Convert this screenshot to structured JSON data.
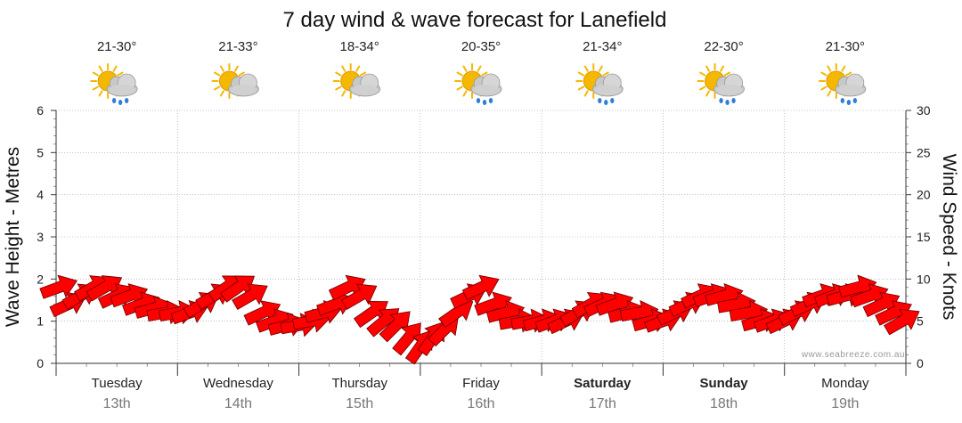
{
  "title": "7 day wind & wave forecast for Lanefield",
  "credit": "www.seabreeze.com.au",
  "colors": {
    "arrow": "#ff0000",
    "arrow_outline": "#6a0000",
    "grid": "#999999",
    "sun": "#f5b800",
    "cloud": "#c8c8c8",
    "rain": "#2f7fd8"
  },
  "days": [
    {
      "name": "Tuesday",
      "date": "13th",
      "temp": "21-30°",
      "bold": false,
      "icon": "sun-cloud-rain-icon"
    },
    {
      "name": "Wednesday",
      "date": "14th",
      "temp": "21-33°",
      "bold": false,
      "icon": "sun-cloud-icon"
    },
    {
      "name": "Thursday",
      "date": "15th",
      "temp": "18-34°",
      "bold": false,
      "icon": "sun-cloud-icon"
    },
    {
      "name": "Friday",
      "date": "16th",
      "temp": "20-35°",
      "bold": false,
      "icon": "sun-cloud-rain-icon"
    },
    {
      "name": "Saturday",
      "date": "17th",
      "temp": "21-34°",
      "bold": true,
      "icon": "sun-cloud-rain-icon"
    },
    {
      "name": "Sunday",
      "date": "18th",
      "temp": "22-30°",
      "bold": true,
      "icon": "sun-cloud-rain-icon"
    },
    {
      "name": "Monday",
      "date": "19th",
      "temp": "21-30°",
      "bold": false,
      "icon": "sun-cloud-rain-icon"
    }
  ],
  "chart_data": {
    "type": "line",
    "title": "7 day wind & wave forecast for Lanefield",
    "x": {
      "unit": "day",
      "range": [
        0,
        7
      ],
      "tick_labels": [
        "Tuesday 13th",
        "Wednesday 14th",
        "Thursday 15th",
        "Friday 16th",
        "Saturday 17th",
        "Sunday 18th",
        "Monday 19th"
      ]
    },
    "y_left": {
      "label": "Wave Height - Metres",
      "range": [
        0,
        6
      ],
      "ticks": [
        0,
        1,
        2,
        3,
        4,
        5,
        6
      ]
    },
    "y_right": {
      "label": "Wind Speed - Knots",
      "range": [
        0,
        30
      ],
      "ticks": [
        0,
        5,
        10,
        15,
        20,
        25,
        30
      ]
    },
    "grid": true,
    "series": [
      {
        "name": "Wind Speed - Knots",
        "axis": "right",
        "marker": "direction-arrow",
        "x": [
          0.02,
          0.1,
          0.2,
          0.3,
          0.4,
          0.5,
          0.6,
          0.7,
          0.8,
          0.9,
          1.0,
          1.1,
          1.2,
          1.3,
          1.4,
          1.5,
          1.6,
          1.7,
          1.8,
          1.9,
          2.0,
          2.1,
          2.2,
          2.3,
          2.4,
          2.5,
          2.6,
          2.7,
          2.8,
          2.9,
          3.0,
          3.1,
          3.2,
          3.3,
          3.4,
          3.5,
          3.6,
          3.7,
          3.8,
          3.9,
          4.0,
          4.1,
          4.2,
          4.3,
          4.4,
          4.5,
          4.6,
          4.7,
          4.8,
          4.9,
          5.0,
          5.1,
          5.2,
          5.3,
          5.4,
          5.5,
          5.6,
          5.7,
          5.8,
          5.9,
          6.0,
          6.1,
          6.2,
          6.3,
          6.4,
          6.5,
          6.6,
          6.7,
          6.8,
          6.9,
          6.97
        ],
        "values": [
          9,
          7,
          8,
          9,
          9,
          8,
          8,
          7,
          6.5,
          6,
          6,
          6,
          7,
          8,
          9,
          9,
          8,
          6,
          5,
          4.5,
          4.5,
          5,
          6,
          7,
          9,
          8,
          6,
          5,
          4.5,
          3,
          2,
          3,
          4,
          6,
          8,
          9,
          7,
          6,
          5,
          5,
          5,
          5,
          5,
          6,
          7,
          7,
          7,
          6,
          6,
          5,
          5,
          6,
          7,
          8,
          8,
          8,
          7,
          6,
          5,
          5,
          5,
          6,
          7,
          8,
          8,
          8,
          9,
          8,
          7,
          6,
          5
        ],
        "direction_deg": [
          250,
          245,
          240,
          240,
          240,
          245,
          250,
          250,
          255,
          260,
          260,
          250,
          240,
          240,
          235,
          235,
          240,
          245,
          250,
          255,
          260,
          260,
          255,
          250,
          245,
          240,
          235,
          230,
          225,
          220,
          215,
          215,
          225,
          235,
          245,
          245,
          250,
          255,
          260,
          260,
          255,
          250,
          245,
          240,
          240,
          245,
          250,
          255,
          260,
          255,
          250,
          245,
          245,
          245,
          250,
          255,
          260,
          260,
          255,
          250,
          245,
          245,
          245,
          250,
          250,
          255,
          255,
          250,
          245,
          245,
          240
        ]
      }
    ]
  }
}
